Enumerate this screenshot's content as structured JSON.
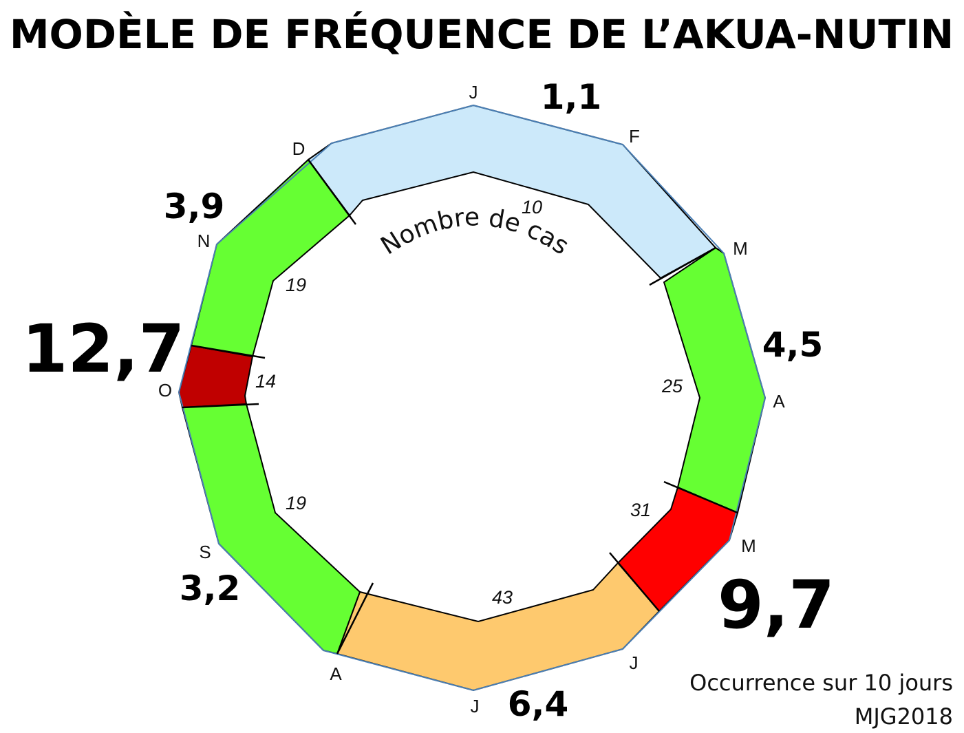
{
  "title": "MODÈLE DE FRÉQUENCE DE L’AKUA-NUTIN",
  "center_label": "Nombre de cas",
  "footer": {
    "line1": "Occurrence sur 10 jours",
    "line2": "MJG2018"
  },
  "months": [
    "J",
    "F",
    "M",
    "A",
    "M",
    "J",
    "J",
    "A",
    "S",
    "O",
    "N",
    "D"
  ],
  "segments": [
    {
      "id": "jan-mar",
      "occurrence": "1,1",
      "cases": "10",
      "color": "#cce9fa"
    },
    {
      "id": "mar-may",
      "occurrence": "4,5",
      "cases": "25",
      "color": "#66ff33"
    },
    {
      "id": "may-jun",
      "occurrence": "9,7",
      "cases": "31",
      "color": "#ff0000"
    },
    {
      "id": "jun-aug",
      "occurrence": "6,4",
      "cases": "43",
      "color": "#fec96e"
    },
    {
      "id": "aug-oct",
      "occurrence": "3,2",
      "cases": "19",
      "color": "#66ff33"
    },
    {
      "id": "oct",
      "occurrence": "12,7",
      "cases": "14",
      "color": "#c00000"
    },
    {
      "id": "oct-dec",
      "occurrence": "3,9",
      "cases": "19",
      "color": "#66ff33"
    }
  ]
}
